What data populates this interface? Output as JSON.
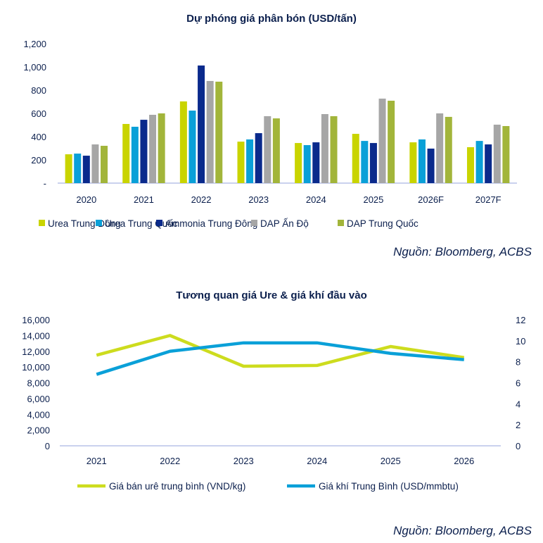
{
  "chart_data": [
    {
      "type": "bar",
      "title": "Dự phóng giá phân bón (USD/tấn)",
      "categories": [
        "2020",
        "2021",
        "2022",
        "2023",
        "2024",
        "2025",
        "2026F",
        "2027F"
      ],
      "ylim": [
        0,
        1200
      ],
      "yticks": [
        0,
        200,
        400,
        600,
        800,
        1000,
        1200
      ],
      "ytick_labels": [
        "-",
        "200",
        "400",
        "600",
        "800",
        "1,000",
        "1,200"
      ],
      "series": [
        {
          "name": "Urea Trung Đông",
          "color": "#c9d400",
          "values": [
            248,
            509,
            703,
            357,
            345,
            424,
            351,
            309
          ]
        },
        {
          "name": "Urea Trung Quốc",
          "color": "#0aa0d8",
          "values": [
            254,
            485,
            624,
            376,
            327,
            363,
            376,
            363
          ]
        },
        {
          "name": "Ammonia Trung Đông",
          "color": "#0a2a8c",
          "values": [
            236,
            545,
            1012,
            430,
            351,
            345,
            297,
            333
          ]
        },
        {
          "name": "DAP Ấn Độ",
          "color": "#a6a6a6",
          "values": [
            333,
            588,
            879,
            576,
            594,
            727,
            600,
            503
          ]
        },
        {
          "name": "DAP Trung Quốc",
          "color": "#a2b53a",
          "values": [
            321,
            600,
            873,
            557,
            576,
            709,
            570,
            491
          ]
        }
      ],
      "legend": "bottom",
      "source": "Nguồn: Bloomberg, ACBS"
    },
    {
      "type": "line",
      "title": "Tương quan giá Ure & giá khí đầu vào",
      "categories": [
        "2021",
        "2022",
        "2023",
        "2024",
        "2025",
        "2026"
      ],
      "ylim": [
        0,
        16000
      ],
      "yticks": [
        0,
        2000,
        4000,
        6000,
        8000,
        10000,
        12000,
        14000,
        16000
      ],
      "ytick_labels": [
        "0",
        "2,000",
        "4,000",
        "6,000",
        "8,000",
        "10,000",
        "12,000",
        "14,000",
        "16,000"
      ],
      "y2lim": [
        0,
        12
      ],
      "y2ticks": [
        0,
        2,
        4,
        6,
        8,
        10,
        12
      ],
      "series": [
        {
          "name": "Giá bán urê trung bình (VND/kg)",
          "color": "#cddc1e",
          "axis": "left",
          "values": [
            11500,
            14000,
            10100,
            10200,
            12600,
            11200
          ]
        },
        {
          "name": "Giá khí Trung Bình (USD/mmbtu)",
          "color": "#0aa0d8",
          "axis": "right",
          "values": [
            6.8,
            9.0,
            9.8,
            9.8,
            8.8,
            8.2
          ]
        }
      ],
      "legend": "bottom",
      "source": "Nguồn: Bloomberg, ACBS"
    }
  ]
}
